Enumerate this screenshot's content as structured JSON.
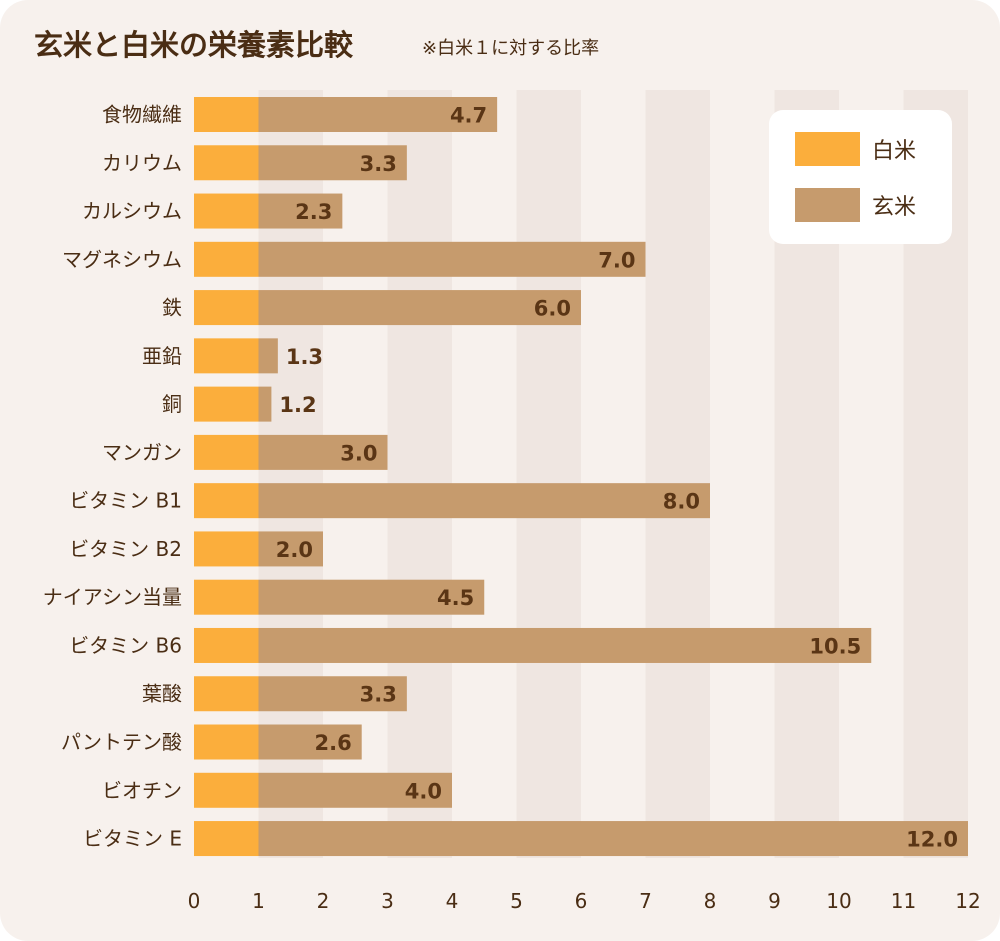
{
  "title": "玄米と白米の栄養素比較",
  "subtitle": "※白米１に対する比率",
  "colors": {
    "white_rice": "#fbae3c",
    "brown_rice": "#c69b6d",
    "band": "#efe6e1",
    "background": "#f7f1ed",
    "text": "#4a2d14"
  },
  "chart_data": {
    "type": "bar",
    "orientation": "horizontal",
    "categories": [
      "食物繊維",
      "カリウム",
      "カルシウム",
      "マグネシウム",
      "鉄",
      "亜鉛",
      "銅",
      "マンガン",
      "ビタミン B1",
      "ビタミン B2",
      "ナイアシン当量",
      "ビタミン B6",
      "葉酸",
      "パントテン酸",
      "ビオチン",
      "ビタミン E"
    ],
    "series": [
      {
        "name": "白米",
        "values": [
          1,
          1,
          1,
          1,
          1,
          1,
          1,
          1,
          1,
          1,
          1,
          1,
          1,
          1,
          1,
          1
        ]
      },
      {
        "name": "玄米",
        "values": [
          4.7,
          3.3,
          2.3,
          7.0,
          6.0,
          1.3,
          1.2,
          3.0,
          8.0,
          2.0,
          4.5,
          10.5,
          3.3,
          2.6,
          4.0,
          12.0
        ]
      }
    ],
    "value_labels": [
      "4.7",
      "3.3",
      "2.3",
      "7.0",
      "6.0",
      "1.3",
      "1.2",
      "3.0",
      "8.0",
      "2.0",
      "4.5",
      "10.5",
      "3.3",
      "2.6",
      "4.0",
      "12.0"
    ],
    "xticks": [
      "0",
      "1",
      "2",
      "3",
      "4",
      "5",
      "6",
      "7",
      "8",
      "9",
      "10",
      "11",
      "12"
    ],
    "xlim": [
      0,
      12
    ],
    "legend_position": "top-right"
  }
}
